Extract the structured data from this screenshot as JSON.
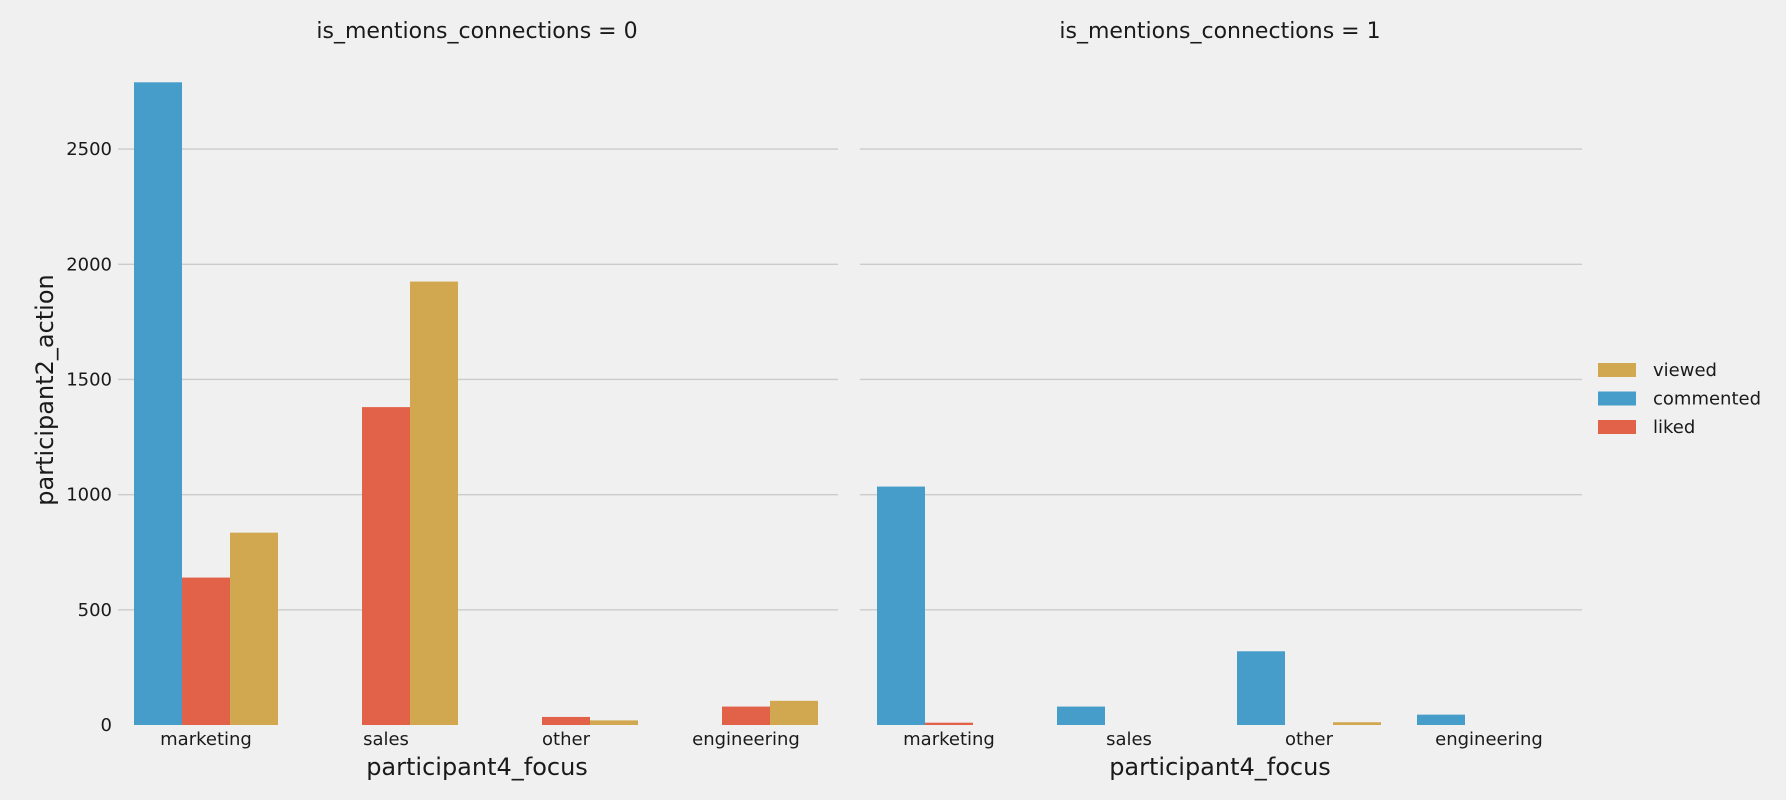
{
  "chart_data": {
    "type": "bar",
    "ylabel": "participant2_action",
    "ylim": [
      0,
      2800
    ],
    "yticks": [
      0,
      500,
      1000,
      1500,
      2000,
      2500
    ],
    "grid": "horizontal",
    "legend": {
      "placement": "right",
      "entries": [
        {
          "name": "viewed",
          "color": "#d1a74f"
        },
        {
          "name": "commented",
          "color": "#469dc9"
        },
        {
          "name": "liked",
          "color": "#e26249"
        }
      ]
    },
    "panels": [
      {
        "title": "is_mentions_connections = 0",
        "xlabel": "participant4_focus",
        "categories": [
          "marketing",
          "sales",
          "other",
          "engineering"
        ],
        "series": [
          {
            "name": "commented",
            "values": [
              2790,
              0,
              0,
              0
            ]
          },
          {
            "name": "liked",
            "values": [
              640,
              1380,
              35,
              80
            ]
          },
          {
            "name": "viewed",
            "values": [
              835,
              1925,
              20,
              105
            ]
          }
        ]
      },
      {
        "title": "is_mentions_connections = 1",
        "xlabel": "participant4_focus",
        "categories": [
          "marketing",
          "sales",
          "other",
          "engineering"
        ],
        "series": [
          {
            "name": "commented",
            "values": [
              1035,
              80,
              320,
              45
            ]
          },
          {
            "name": "liked",
            "values": [
              10,
              0,
              0,
              0
            ]
          },
          {
            "name": "viewed",
            "values": [
              0,
              0,
              12,
              0
            ]
          }
        ]
      }
    ]
  }
}
